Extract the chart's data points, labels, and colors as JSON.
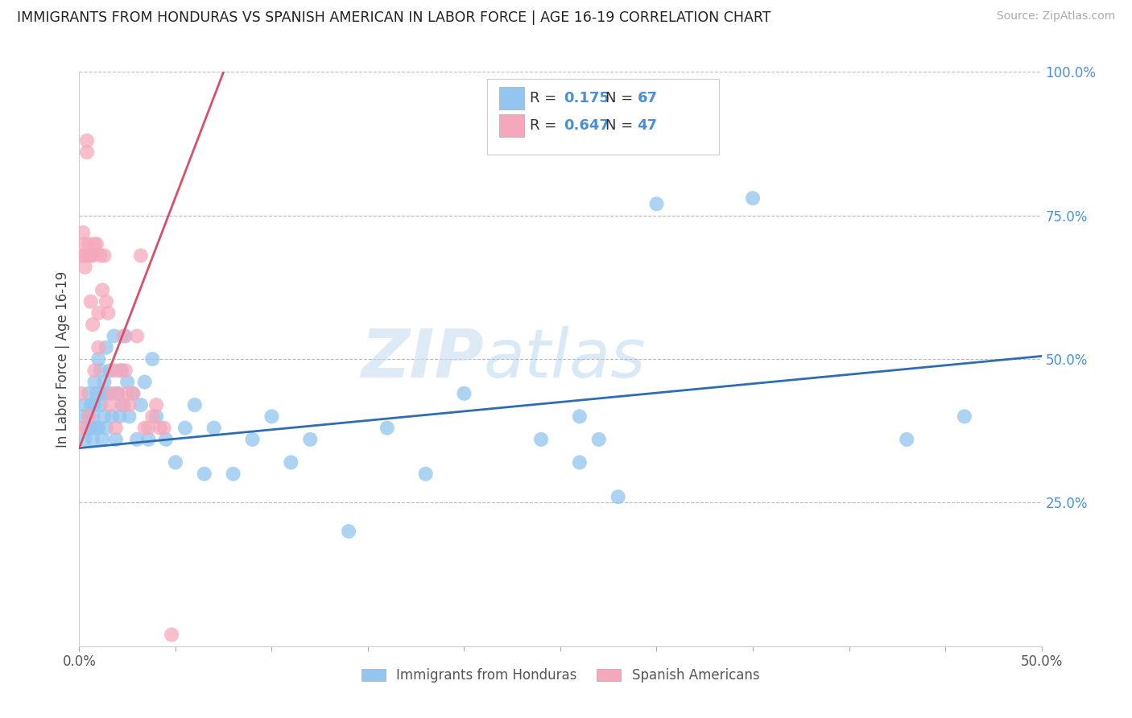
{
  "title": "IMMIGRANTS FROM HONDURAS VS SPANISH AMERICAN IN LABOR FORCE | AGE 16-19 CORRELATION CHART",
  "source": "Source: ZipAtlas.com",
  "ylabel": "In Labor Force | Age 16-19",
  "xlim": [
    0.0,
    0.5
  ],
  "ylim": [
    0.0,
    1.0
  ],
  "xtick_vals": [
    0.0,
    0.05,
    0.1,
    0.15,
    0.2,
    0.25,
    0.3,
    0.35,
    0.4,
    0.45,
    0.5
  ],
  "xtick_labels_show": {
    "0.0": "0.0%",
    "0.5": "50.0%"
  },
  "ytick_labels_right": [
    "100.0%",
    "75.0%",
    "50.0%",
    "25.0%"
  ],
  "ytick_vals_right": [
    1.0,
    0.75,
    0.5,
    0.25
  ],
  "blue_R": "0.175",
  "blue_N": "67",
  "pink_R": "0.647",
  "pink_N": "47",
  "blue_color": "#92C5F0",
  "pink_color": "#F5A8BC",
  "blue_line_color": "#2E6DB4",
  "pink_line_color": "#D94F6A",
  "watermark_zip": "ZIP",
  "watermark_atlas": "atlas",
  "legend_label_blue": "Immigrants from Honduras",
  "legend_label_pink": "Spanish Americans",
  "blue_line_x": [
    0.0,
    0.5
  ],
  "blue_line_y": [
    0.345,
    0.505
  ],
  "pink_line_x": [
    0.0,
    0.075
  ],
  "pink_line_y": [
    0.345,
    1.0
  ],
  "blue_x": [
    0.002,
    0.003,
    0.003,
    0.004,
    0.005,
    0.005,
    0.006,
    0.006,
    0.007,
    0.007,
    0.008,
    0.008,
    0.009,
    0.009,
    0.01,
    0.01,
    0.011,
    0.011,
    0.012,
    0.012,
    0.013,
    0.013,
    0.014,
    0.014,
    0.015,
    0.016,
    0.017,
    0.018,
    0.019,
    0.02,
    0.021,
    0.022,
    0.023,
    0.024,
    0.025,
    0.026,
    0.028,
    0.03,
    0.032,
    0.034,
    0.036,
    0.038,
    0.04,
    0.045,
    0.05,
    0.055,
    0.06,
    0.065,
    0.07,
    0.08,
    0.09,
    0.1,
    0.11,
    0.12,
    0.14,
    0.16,
    0.18,
    0.2,
    0.24,
    0.26,
    0.3,
    0.35,
    0.26,
    0.27,
    0.28,
    0.43,
    0.46
  ],
  "blue_y": [
    0.4,
    0.36,
    0.42,
    0.38,
    0.4,
    0.44,
    0.38,
    0.42,
    0.36,
    0.4,
    0.42,
    0.46,
    0.38,
    0.44,
    0.5,
    0.38,
    0.42,
    0.48,
    0.36,
    0.44,
    0.4,
    0.46,
    0.38,
    0.52,
    0.44,
    0.48,
    0.4,
    0.54,
    0.36,
    0.44,
    0.4,
    0.48,
    0.42,
    0.54,
    0.46,
    0.4,
    0.44,
    0.36,
    0.42,
    0.46,
    0.36,
    0.5,
    0.4,
    0.36,
    0.32,
    0.38,
    0.42,
    0.3,
    0.38,
    0.3,
    0.36,
    0.4,
    0.32,
    0.36,
    0.2,
    0.38,
    0.3,
    0.44,
    0.36,
    0.32,
    0.77,
    0.78,
    0.4,
    0.36,
    0.26,
    0.36,
    0.4
  ],
  "pink_x": [
    0.001,
    0.001,
    0.002,
    0.002,
    0.003,
    0.003,
    0.003,
    0.004,
    0.004,
    0.005,
    0.005,
    0.005,
    0.006,
    0.006,
    0.007,
    0.007,
    0.008,
    0.008,
    0.009,
    0.01,
    0.01,
    0.011,
    0.012,
    0.013,
    0.014,
    0.015,
    0.016,
    0.017,
    0.018,
    0.019,
    0.02,
    0.021,
    0.022,
    0.023,
    0.024,
    0.025,
    0.026,
    0.028,
    0.03,
    0.032,
    0.034,
    0.036,
    0.038,
    0.04,
    0.042,
    0.044,
    0.048
  ],
  "pink_y": [
    0.38,
    0.44,
    0.68,
    0.72,
    0.68,
    0.7,
    0.66,
    0.86,
    0.88,
    0.68,
    0.7,
    0.4,
    0.68,
    0.6,
    0.56,
    0.68,
    0.48,
    0.7,
    0.7,
    0.52,
    0.58,
    0.68,
    0.62,
    0.68,
    0.6,
    0.58,
    0.42,
    0.44,
    0.48,
    0.38,
    0.44,
    0.48,
    0.42,
    0.54,
    0.48,
    0.44,
    0.42,
    0.44,
    0.54,
    0.68,
    0.38,
    0.38,
    0.4,
    0.42,
    0.38,
    0.38,
    0.02
  ]
}
